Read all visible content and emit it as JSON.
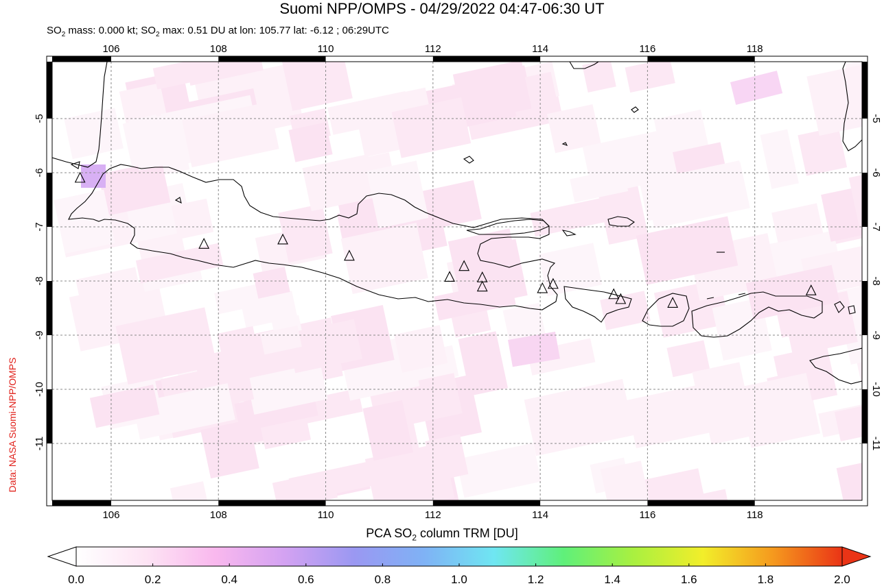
{
  "title": "Suomi NPP/OMPS - 04/29/2022 04:47-06:30 UT",
  "subtitle": {
    "p1": "SO",
    "sub1": "2",
    "p2": " mass: 0.000 kt; SO",
    "sub2": "2",
    "p3": " max: 0.51 DU at lon: 105.77 lat: -6.12 ; 06:29UTC"
  },
  "credit": "Data: NASA Suomi-NPP/OMPS",
  "map": {
    "lon_range": [
      104.9,
      120.0
    ],
    "lat_range": [
      -12.05,
      -3.95
    ],
    "lon_ticks": [
      "106",
      "108",
      "110",
      "112",
      "114",
      "116",
      "118"
    ],
    "lat_ticks": [
      "-5",
      "-6",
      "-7",
      "-8",
      "-9",
      "-10",
      "-11"
    ],
    "grid": true,
    "volcano_icon": "triangle-volcano-icon",
    "volcanoes": [
      {
        "lon": 105.42,
        "lat": -6.1
      },
      {
        "lon": 107.73,
        "lat": -7.32
      },
      {
        "lon": 109.2,
        "lat": -7.24
      },
      {
        "lon": 110.44,
        "lat": -7.54
      },
      {
        "lon": 112.31,
        "lat": -7.93
      },
      {
        "lon": 112.58,
        "lat": -7.73
      },
      {
        "lon": 112.92,
        "lat": -7.94
      },
      {
        "lon": 112.92,
        "lat": -8.11
      },
      {
        "lon": 114.04,
        "lat": -8.14
      },
      {
        "lon": 114.24,
        "lat": -8.06
      },
      {
        "lon": 115.37,
        "lat": -8.25
      },
      {
        "lon": 115.5,
        "lat": -8.34
      },
      {
        "lon": 116.47,
        "lat": -8.41
      },
      {
        "lon": 119.05,
        "lat": -8.18
      }
    ]
  },
  "colorbar": {
    "title_p1": "PCA SO",
    "title_sub": "2",
    "title_p2": " column TRM [DU]",
    "ticks": [
      "0.0",
      "0.2",
      "0.4",
      "0.6",
      "0.8",
      "1.0",
      "1.2",
      "1.4",
      "1.6",
      "1.8",
      "2.0"
    ],
    "range": [
      0.0,
      2.0
    ],
    "colors": [
      "#ffffff",
      "#fde4f4",
      "#f9b8ee",
      "#d3a2f2",
      "#9a98f2",
      "#7fb2f5",
      "#6fe6f2",
      "#5ff07a",
      "#a9f040",
      "#f2ee2a",
      "#f59a1e",
      "#ea3416"
    ]
  }
}
